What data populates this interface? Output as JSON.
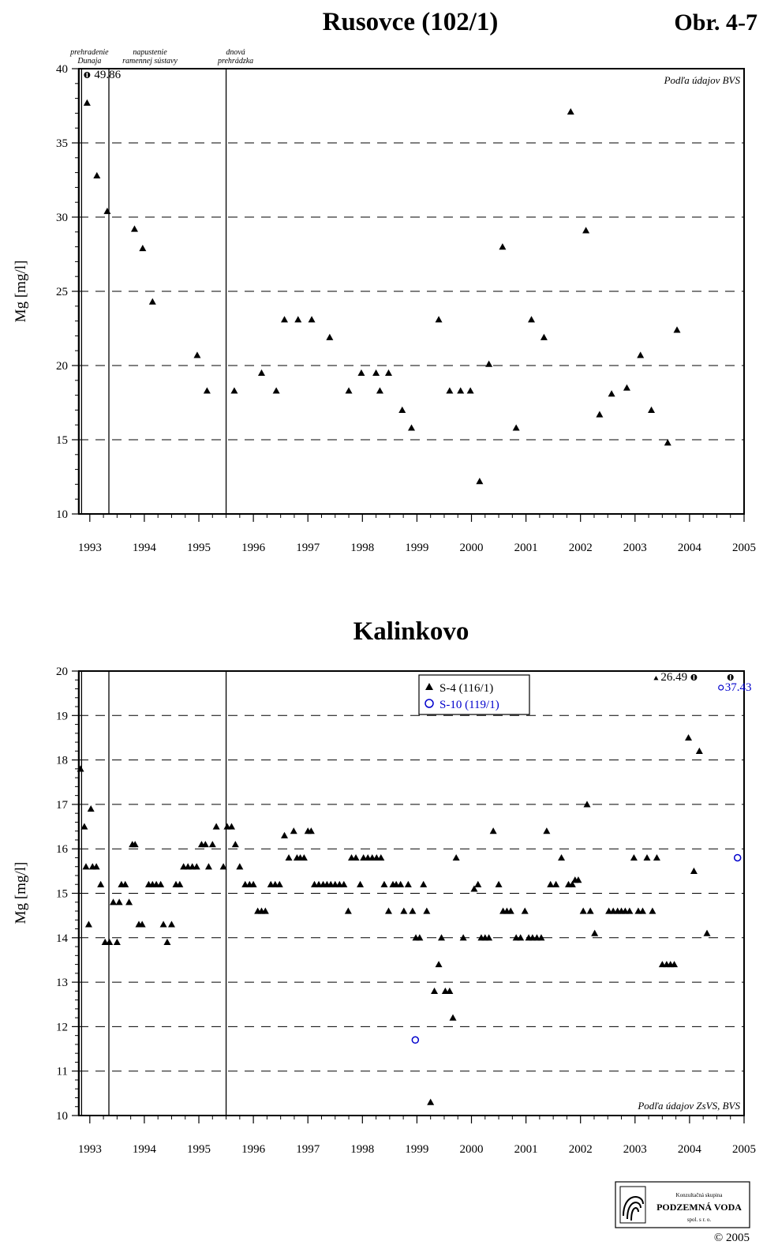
{
  "figure_number": "Obr. 4-7",
  "chart_data": [
    {
      "type": "scatter",
      "title": "Rusovce (102/1)",
      "ylabel": "Mg [mg/l]",
      "xlabel": "",
      "xlim": [
        1992.8,
        2005.0
      ],
      "ylim": [
        10,
        40
      ],
      "x_ticks": [
        "1993",
        "1994",
        "1995",
        "1996",
        "1997",
        "1998",
        "1999",
        "2000",
        "2001",
        "2002",
        "2003",
        "2004",
        "2005"
      ],
      "y_ticks": [
        "10",
        "15",
        "20",
        "25",
        "30",
        "35",
        "40"
      ],
      "grid": true,
      "source_note": "Podľa údajov BVS",
      "events": [
        {
          "x": 1992.82,
          "label_lines": [
            "prehradenie",
            "Dunaja"
          ]
        },
        {
          "x": 1993.35,
          "label_lines": [
            "napustenie",
            "ramennej sústavy"
          ]
        },
        {
          "x": 1995.5,
          "label_lines": [
            "dnová",
            "prehrádzka"
          ]
        }
      ],
      "offscale": [
        {
          "x": 1992.95,
          "value": "49.86",
          "marker": "triangle"
        }
      ],
      "series": [
        {
          "marker": "triangle",
          "color": "#000000",
          "points": [
            [
              1992.95,
              37.7
            ],
            [
              1993.13,
              32.8
            ],
            [
              1993.32,
              30.4
            ],
            [
              1993.82,
              29.2
            ],
            [
              1993.97,
              27.9
            ],
            [
              1994.15,
              24.3
            ],
            [
              1994.97,
              20.7
            ],
            [
              1995.15,
              18.3
            ],
            [
              1995.65,
              18.3
            ],
            [
              1996.15,
              19.5
            ],
            [
              1996.42,
              18.3
            ],
            [
              1996.57,
              23.1
            ],
            [
              1996.82,
              23.1
            ],
            [
              1997.07,
              23.1
            ],
            [
              1997.4,
              21.9
            ],
            [
              1997.75,
              18.3
            ],
            [
              1997.98,
              19.5
            ],
            [
              1998.25,
              19.5
            ],
            [
              1998.32,
              18.3
            ],
            [
              1998.48,
              19.5
            ],
            [
              1998.73,
              17.0
            ],
            [
              1998.9,
              15.8
            ],
            [
              1999.4,
              23.1
            ],
            [
              1999.6,
              18.3
            ],
            [
              1999.8,
              18.3
            ],
            [
              1999.98,
              18.3
            ],
            [
              2000.15,
              12.2
            ],
            [
              2000.32,
              20.1
            ],
            [
              2000.57,
              28.0
            ],
            [
              2000.82,
              15.8
            ],
            [
              2001.1,
              23.1
            ],
            [
              2001.33,
              21.9
            ],
            [
              2001.82,
              37.1
            ],
            [
              2002.1,
              29.1
            ],
            [
              2002.35,
              16.7
            ],
            [
              2002.57,
              18.1
            ],
            [
              2002.85,
              18.5
            ],
            [
              2003.1,
              20.7
            ],
            [
              2003.3,
              17.0
            ],
            [
              2003.6,
              14.8
            ],
            [
              2003.77,
              22.4
            ]
          ]
        }
      ]
    },
    {
      "type": "scatter",
      "title": "Kalinkovo",
      "ylabel": "Mg [mg/l]",
      "xlabel": "",
      "xlim": [
        1992.8,
        2005.0
      ],
      "ylim": [
        10,
        20
      ],
      "x_ticks": [
        "1993",
        "1994",
        "1995",
        "1996",
        "1997",
        "1998",
        "1999",
        "2000",
        "2001",
        "2002",
        "2003",
        "2004",
        "2005"
      ],
      "y_ticks": [
        "10",
        "11",
        "12",
        "13",
        "14",
        "15",
        "16",
        "17",
        "18",
        "19",
        "20"
      ],
      "grid": true,
      "legend_position": "top-center",
      "source_note": "Podľa údajov ZsVS, BVS",
      "events": [
        {
          "x": 1992.82,
          "label_lines": []
        },
        {
          "x": 1993.35,
          "label_lines": []
        },
        {
          "x": 1995.5,
          "label_lines": []
        }
      ],
      "offscale": [
        {
          "x": 2004.08,
          "value": "26.49",
          "marker": "triangle"
        },
        {
          "x": 2004.75,
          "value": "37.43",
          "marker": "circle"
        }
      ],
      "series": [
        {
          "name": "S-4 (116/1)",
          "marker": "triangle",
          "color": "#000000",
          "points": [
            [
              1992.83,
              17.8
            ],
            [
              1992.9,
              16.5
            ],
            [
              1992.93,
              15.6
            ],
            [
              1992.98,
              14.3
            ],
            [
              1993.02,
              16.9
            ],
            [
              1993.05,
              15.6
            ],
            [
              1993.12,
              15.6
            ],
            [
              1993.2,
              15.2
            ],
            [
              1993.28,
              13.9
            ],
            [
              1993.36,
              13.9
            ],
            [
              1993.43,
              14.8
            ],
            [
              1993.5,
              13.9
            ],
            [
              1993.54,
              14.8
            ],
            [
              1993.58,
              15.2
            ],
            [
              1993.65,
              15.2
            ],
            [
              1993.72,
              14.8
            ],
            [
              1993.78,
              16.1
            ],
            [
              1993.83,
              16.1
            ],
            [
              1993.9,
              14.3
            ],
            [
              1993.96,
              14.3
            ],
            [
              1994.08,
              15.2
            ],
            [
              1994.15,
              15.2
            ],
            [
              1994.22,
              15.2
            ],
            [
              1994.3,
              15.2
            ],
            [
              1994.35,
              14.3
            ],
            [
              1994.42,
              13.9
            ],
            [
              1994.5,
              14.3
            ],
            [
              1994.58,
              15.2
            ],
            [
              1994.65,
              15.2
            ],
            [
              1994.72,
              15.6
            ],
            [
              1994.8,
              15.6
            ],
            [
              1994.88,
              15.6
            ],
            [
              1994.96,
              15.6
            ],
            [
              1995.05,
              16.1
            ],
            [
              1995.12,
              16.1
            ],
            [
              1995.18,
              15.6
            ],
            [
              1995.25,
              16.1
            ],
            [
              1995.32,
              16.5
            ],
            [
              1995.45,
              15.6
            ],
            [
              1995.52,
              16.5
            ],
            [
              1995.6,
              16.5
            ],
            [
              1995.67,
              16.1
            ],
            [
              1995.75,
              15.6
            ],
            [
              1995.85,
              15.2
            ],
            [
              1995.93,
              15.2
            ],
            [
              1996.0,
              15.2
            ],
            [
              1996.08,
              14.6
            ],
            [
              1996.15,
              14.6
            ],
            [
              1996.22,
              14.6
            ],
            [
              1996.32,
              15.2
            ],
            [
              1996.4,
              15.2
            ],
            [
              1996.48,
              15.2
            ],
            [
              1996.57,
              16.3
            ],
            [
              1996.65,
              15.8
            ],
            [
              1996.74,
              16.4
            ],
            [
              1996.8,
              15.8
            ],
            [
              1996.86,
              15.8
            ],
            [
              1996.93,
              15.8
            ],
            [
              1997.0,
              16.4
            ],
            [
              1997.06,
              16.4
            ],
            [
              1997.12,
              15.2
            ],
            [
              1997.2,
              15.2
            ],
            [
              1997.28,
              15.2
            ],
            [
              1997.35,
              15.2
            ],
            [
              1997.42,
              15.2
            ],
            [
              1997.5,
              15.2
            ],
            [
              1997.58,
              15.2
            ],
            [
              1997.66,
              15.2
            ],
            [
              1997.74,
              14.6
            ],
            [
              1997.8,
              15.8
            ],
            [
              1997.88,
              15.8
            ],
            [
              1997.96,
              15.2
            ],
            [
              1998.02,
              15.8
            ],
            [
              1998.1,
              15.8
            ],
            [
              1998.18,
              15.8
            ],
            [
              1998.26,
              15.8
            ],
            [
              1998.34,
              15.8
            ],
            [
              1998.4,
              15.2
            ],
            [
              1998.48,
              14.6
            ],
            [
              1998.56,
              15.2
            ],
            [
              1998.62,
              15.2
            ],
            [
              1998.7,
              15.2
            ],
            [
              1998.76,
              14.6
            ],
            [
              1998.84,
              15.2
            ],
            [
              1998.92,
              14.6
            ],
            [
              1998.98,
              14.0
            ],
            [
              1999.05,
              14.0
            ],
            [
              1999.12,
              15.2
            ],
            [
              1999.18,
              14.6
            ],
            [
              1999.25,
              10.3
            ],
            [
              1999.32,
              12.8
            ],
            [
              1999.4,
              13.4
            ],
            [
              1999.45,
              14.0
            ],
            [
              1999.52,
              12.8
            ],
            [
              1999.6,
              12.8
            ],
            [
              1999.66,
              12.2
            ],
            [
              1999.72,
              15.8
            ],
            [
              1999.85,
              14.0
            ],
            [
              2000.05,
              15.1
            ],
            [
              2000.12,
              15.2
            ],
            [
              2000.18,
              14.0
            ],
            [
              2000.25,
              14.0
            ],
            [
              2000.32,
              14.0
            ],
            [
              2000.4,
              16.4
            ],
            [
              2000.5,
              15.2
            ],
            [
              2000.58,
              14.6
            ],
            [
              2000.65,
              14.6
            ],
            [
              2000.72,
              14.6
            ],
            [
              2000.82,
              14.0
            ],
            [
              2000.9,
              14.0
            ],
            [
              2000.98,
              14.6
            ],
            [
              2001.05,
              14.0
            ],
            [
              2001.12,
              14.0
            ],
            [
              2001.2,
              14.0
            ],
            [
              2001.28,
              14.0
            ],
            [
              2001.38,
              16.4
            ],
            [
              2001.45,
              15.2
            ],
            [
              2001.55,
              15.2
            ],
            [
              2001.65,
              15.8
            ],
            [
              2001.78,
              15.2
            ],
            [
              2001.85,
              15.2
            ],
            [
              2001.9,
              15.3
            ],
            [
              2001.96,
              15.3
            ],
            [
              2002.05,
              14.6
            ],
            [
              2002.12,
              17.0
            ],
            [
              2002.18,
              14.6
            ],
            [
              2002.26,
              14.1
            ],
            [
              2002.52,
              14.6
            ],
            [
              2002.6,
              14.6
            ],
            [
              2002.68,
              14.6
            ],
            [
              2002.75,
              14.6
            ],
            [
              2002.82,
              14.6
            ],
            [
              2002.9,
              14.6
            ],
            [
              2002.98,
              15.8
            ],
            [
              2003.06,
              14.6
            ],
            [
              2003.14,
              14.6
            ],
            [
              2003.22,
              15.8
            ],
            [
              2003.32,
              14.6
            ],
            [
              2003.4,
              15.8
            ],
            [
              2003.5,
              13.4
            ],
            [
              2003.58,
              13.4
            ],
            [
              2003.65,
              13.4
            ],
            [
              2003.72,
              13.4
            ],
            [
              2003.98,
              18.5
            ],
            [
              2004.08,
              15.5
            ],
            [
              2004.18,
              18.2
            ],
            [
              2004.32,
              14.1
            ]
          ]
        },
        {
          "name": "S-10 (119/1)",
          "marker": "circle",
          "color": "#0000cc",
          "points": [
            [
              1998.97,
              11.7
            ],
            [
              2004.88,
              15.8
            ]
          ]
        }
      ]
    }
  ],
  "logo": {
    "line1": "Konzultačná skupina",
    "line2": "PODZEMNÁ VODA",
    "line3": "spol. s r. o."
  },
  "copyright": "© 2005"
}
